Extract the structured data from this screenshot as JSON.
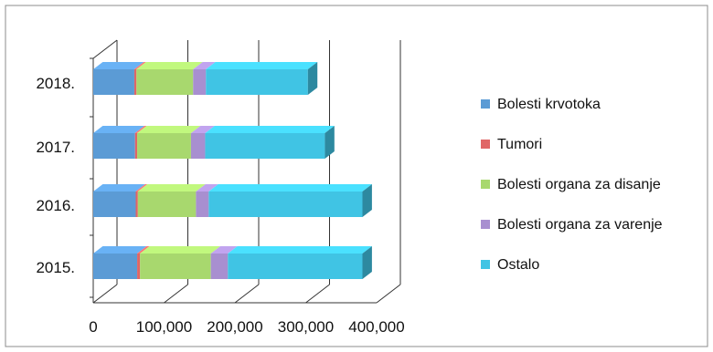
{
  "chart_data": {
    "type": "bar",
    "orientation": "horizontal",
    "stacked": true,
    "three_d": true,
    "categories": [
      "2015.",
      "2016.",
      "2017.",
      "2018."
    ],
    "series": [
      {
        "name": "Bolesti krvotoka",
        "color": "#5b9bd5",
        "values": [
          62000,
          60000,
          59000,
          58000
        ]
      },
      {
        "name": "Tumori",
        "color": "#e06666",
        "values": [
          4000,
          3000,
          3000,
          3000
        ]
      },
      {
        "name": "Bolesti organa za disanje",
        "color": "#a8d86e",
        "values": [
          100000,
          82000,
          76000,
          80000
        ]
      },
      {
        "name": "Bolesti organa za varenje",
        "color": "#a88fd0",
        "values": [
          24000,
          18000,
          20000,
          18000
        ]
      },
      {
        "name": "Ostalo",
        "color": "#40c4e4",
        "values": [
          190000,
          217000,
          169000,
          144000
        ]
      }
    ],
    "xticks": [
      "0",
      "100,000",
      "200,000",
      "300,000",
      "400,000"
    ],
    "xlim": [
      0,
      400000
    ],
    "grid": true,
    "legend_position": "right"
  }
}
